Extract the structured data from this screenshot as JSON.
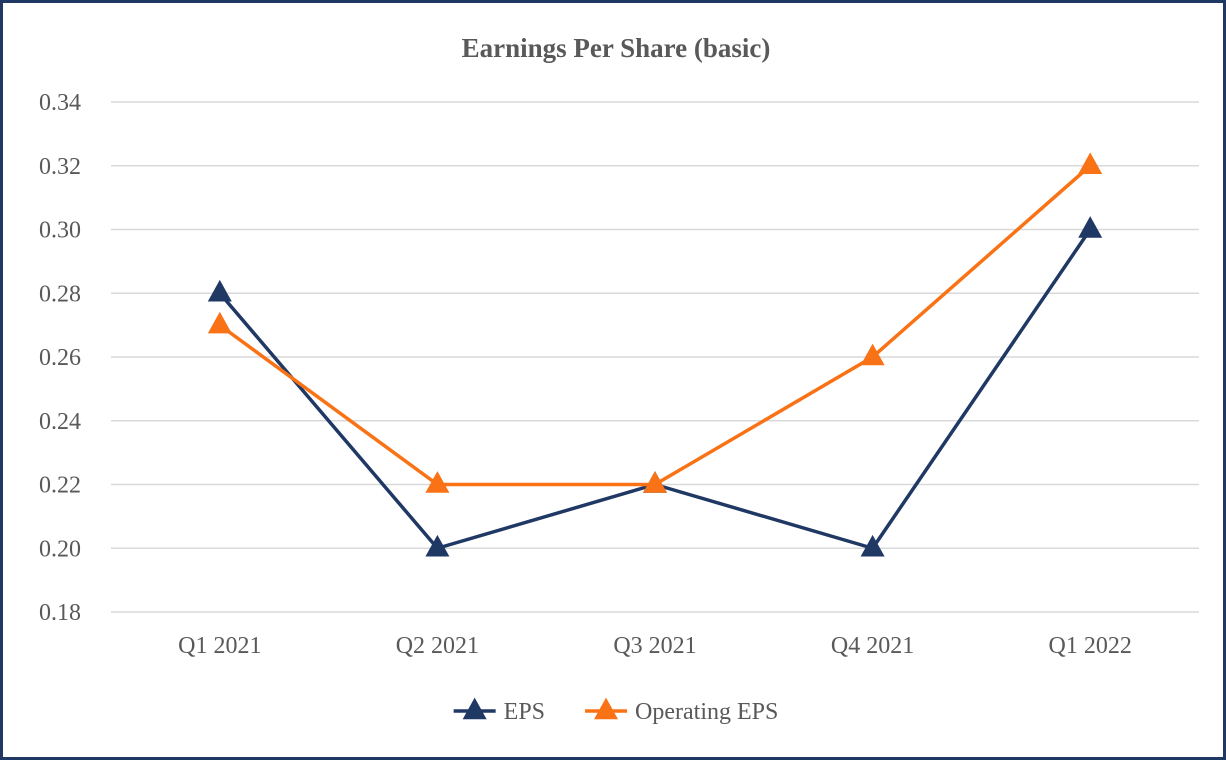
{
  "chart_data": {
    "type": "line",
    "title": "Earnings Per Share (basic)",
    "xlabel": "",
    "ylabel": "",
    "categories": [
      "Q1 2021",
      "Q2 2021",
      "Q3 2021",
      "Q4 2021",
      "Q1 2022"
    ],
    "ylim": [
      0.18,
      0.34
    ],
    "yticks": [
      "0.18",
      "0.20",
      "0.22",
      "0.24",
      "0.26",
      "0.28",
      "0.30",
      "0.32",
      "0.34"
    ],
    "grid": true,
    "legend_position": "bottom",
    "marker": "triangle",
    "series": [
      {
        "name": "EPS",
        "color": "#1f3864",
        "values": [
          0.28,
          0.2,
          0.22,
          0.2,
          0.3
        ]
      },
      {
        "name": "Operating EPS",
        "color": "#f97316",
        "values": [
          0.27,
          0.22,
          0.22,
          0.26,
          0.32
        ]
      }
    ]
  }
}
